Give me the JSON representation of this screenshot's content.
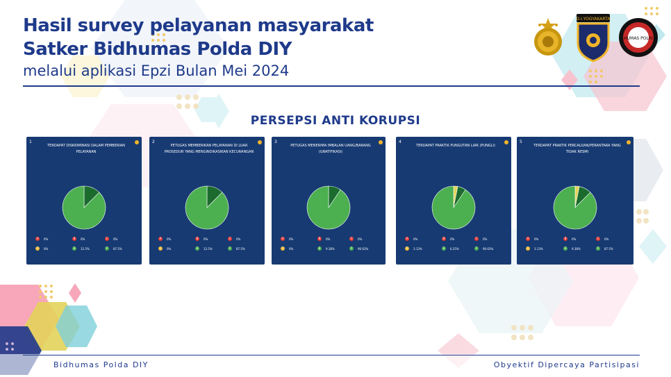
{
  "header": {
    "title_line1": "Hasil survey pelayanan masyarakat",
    "title_line2": "Satker Bidhumas Polda DIY",
    "title_line3": "melalui aplikasi Epzi Bulan Mei 2024"
  },
  "logos": [
    {
      "name": "polri-emblem-icon"
    },
    {
      "name": "diy-yogyakarta-badge-icon",
      "text": "D.I.YOGYAKARTA"
    },
    {
      "name": "humas-polri-emblem-icon",
      "text": "HUMAS POLRI"
    }
  ],
  "section": {
    "heading": "PERSEPSI ANTI KORUPSI"
  },
  "colors": {
    "card_bg": "#173a73",
    "pie_green": "#4caf50",
    "pie_dark": "#1b6b2e",
    "pie_yellow": "#e3d35b"
  },
  "cards": [
    {
      "number": "1",
      "question": "TERDAPAT DISKRIMINASI DALAM PEMBERIAN PELAYANAN",
      "legend": [
        {
          "letter": "A",
          "value": "0%",
          "color": "#e53935"
        },
        {
          "letter": "B",
          "value": "0%",
          "color": "#e53935"
        },
        {
          "letter": "C",
          "value": "0%",
          "color": "#e53935"
        },
        {
          "letter": "D",
          "value": "0%",
          "color": "#f0b429"
        },
        {
          "letter": "E",
          "value": "12.5%",
          "color": "#4caf50"
        },
        {
          "letter": "F",
          "value": "87.5%",
          "color": "#4caf50"
        }
      ],
      "slices": [
        {
          "value": 12.5,
          "color": "#1b6b2e"
        },
        {
          "value": 87.5,
          "color": "#4caf50"
        }
      ]
    },
    {
      "number": "2",
      "question": "PETUGAS MEMBERIKAN PELAYANAN DI LUAR PROSEDUR YANG MENGINDIKASIKAN KECURANGAN",
      "legend": [
        {
          "letter": "A",
          "value": "0%",
          "color": "#e53935"
        },
        {
          "letter": "B",
          "value": "0%",
          "color": "#e53935"
        },
        {
          "letter": "C",
          "value": "0%",
          "color": "#e53935"
        },
        {
          "letter": "D",
          "value": "0%",
          "color": "#f0b429"
        },
        {
          "letter": "E",
          "value": "12.5%",
          "color": "#4caf50"
        },
        {
          "letter": "F",
          "value": "87.5%",
          "color": "#4caf50"
        }
      ],
      "slices": [
        {
          "value": 12.5,
          "color": "#1b6b2e"
        },
        {
          "value": 87.5,
          "color": "#4caf50"
        }
      ]
    },
    {
      "number": "3",
      "question": "PETUGAS MENERIMA IMBALAN UANG/BARANG (GRATIFIKASI)",
      "legend": [
        {
          "letter": "A",
          "value": "0%",
          "color": "#e53935"
        },
        {
          "letter": "B",
          "value": "0%",
          "color": "#e53935"
        },
        {
          "letter": "C",
          "value": "0%",
          "color": "#e53935"
        },
        {
          "letter": "D",
          "value": "0%",
          "color": "#f0b429"
        },
        {
          "letter": "E",
          "value": "9.38%",
          "color": "#4caf50"
        },
        {
          "letter": "F",
          "value": "90.63%",
          "color": "#4caf50"
        }
      ],
      "slices": [
        {
          "value": 9.38,
          "color": "#1b6b2e"
        },
        {
          "value": 90.63,
          "color": "#4caf50"
        }
      ]
    },
    {
      "number": "4",
      "question": "TERDAPAT PRAKTIK PUNGUTAN LIAR (PUNGLI)",
      "legend": [
        {
          "letter": "A",
          "value": "0%",
          "color": "#e53935"
        },
        {
          "letter": "B",
          "value": "0%",
          "color": "#e53935"
        },
        {
          "letter": "C",
          "value": "0%",
          "color": "#e53935"
        },
        {
          "letter": "D",
          "value": "3.13%",
          "color": "#f0b429"
        },
        {
          "letter": "E",
          "value": "6.25%",
          "color": "#4caf50"
        },
        {
          "letter": "F",
          "value": "90.63%",
          "color": "#4caf50"
        }
      ],
      "slices": [
        {
          "value": 3.13,
          "color": "#e3d35b"
        },
        {
          "value": 6.25,
          "color": "#1b6b2e"
        },
        {
          "value": 90.63,
          "color": "#4caf50"
        }
      ]
    },
    {
      "number": "5",
      "question": "TERDAPAT PRAKTIK PERCALOAN/PERANTARA YANG TIDAK RESMI",
      "legend": [
        {
          "letter": "A",
          "value": "0%",
          "color": "#e53935"
        },
        {
          "letter": "B",
          "value": "0%",
          "color": "#e53935"
        },
        {
          "letter": "C",
          "value": "0%",
          "color": "#e53935"
        },
        {
          "letter": "D",
          "value": "3.13%",
          "color": "#f0b429"
        },
        {
          "letter": "E",
          "value": "9.38%",
          "color": "#4caf50"
        },
        {
          "letter": "F",
          "value": "87.5%",
          "color": "#4caf50"
        }
      ],
      "slices": [
        {
          "value": 3.13,
          "color": "#e3d35b"
        },
        {
          "value": 9.38,
          "color": "#1b6b2e"
        },
        {
          "value": 87.5,
          "color": "#4caf50"
        }
      ]
    }
  ],
  "footer": {
    "left": "Bidhumas Polda DIY",
    "right": "Obyektif Dipercaya Partisipasi"
  }
}
